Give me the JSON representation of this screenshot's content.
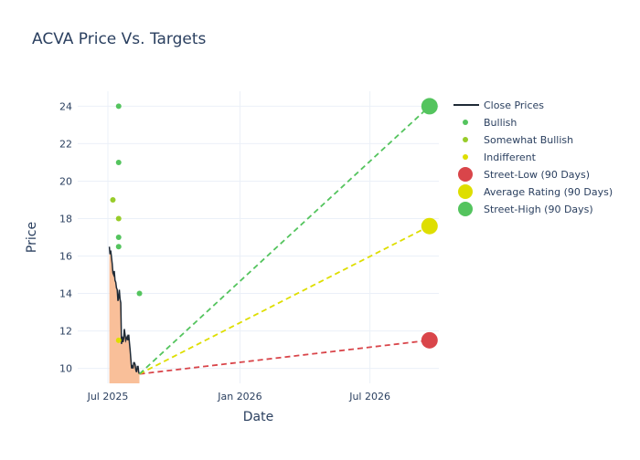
{
  "chart_data": {
    "type": "line",
    "title": "ACVA Price Vs. Targets",
    "xlabel": "Date",
    "ylabel": "Price",
    "x_range": [
      "2025-05-20",
      "2026-10-05"
    ],
    "ylim": [
      9.2,
      24.8
    ],
    "x_ticks": [
      {
        "date": "2025-07-01",
        "label": "Jul 2025"
      },
      {
        "date": "2026-01-01",
        "label": "Jan 2026"
      },
      {
        "date": "2026-07-01",
        "label": "Jul 2026"
      }
    ],
    "y_ticks": [
      10,
      12,
      14,
      16,
      18,
      20,
      22,
      24
    ],
    "grid": true,
    "legend_position": "right",
    "close_prices": {
      "name": "Close Prices",
      "color": "#1f2a36",
      "fill_color": "#f9bf99",
      "points": [
        [
          "2025-07-03",
          16.5
        ],
        [
          "2025-07-04",
          16.1
        ],
        [
          "2025-07-05",
          16.3
        ],
        [
          "2025-07-07",
          15.6
        ],
        [
          "2025-07-08",
          15.1
        ],
        [
          "2025-07-09",
          15.0
        ],
        [
          "2025-07-10",
          15.2
        ],
        [
          "2025-07-11",
          14.7
        ],
        [
          "2025-07-12",
          14.6
        ],
        [
          "2025-07-13",
          14.3
        ],
        [
          "2025-07-14",
          14.2
        ],
        [
          "2025-07-15",
          13.6
        ],
        [
          "2025-07-16",
          13.8
        ],
        [
          "2025-07-17",
          14.2
        ],
        [
          "2025-07-18",
          13.7
        ],
        [
          "2025-07-19",
          13.5
        ],
        [
          "2025-07-20",
          11.3
        ],
        [
          "2025-07-21",
          11.7
        ],
        [
          "2025-07-22",
          11.4
        ],
        [
          "2025-07-23",
          11.6
        ],
        [
          "2025-07-24",
          12.1
        ],
        [
          "2025-07-25",
          11.8
        ],
        [
          "2025-07-26",
          11.5
        ],
        [
          "2025-07-27",
          11.6
        ],
        [
          "2025-07-28",
          11.7
        ],
        [
          "2025-07-29",
          11.5
        ],
        [
          "2025-07-30",
          11.8
        ],
        [
          "2025-07-31",
          11.4
        ],
        [
          "2025-08-01",
          11.0
        ],
        [
          "2025-08-02",
          10.5
        ],
        [
          "2025-08-03",
          10.0
        ],
        [
          "2025-08-04",
          10.1
        ],
        [
          "2025-08-05",
          10.0
        ],
        [
          "2025-08-06",
          10.3
        ],
        [
          "2025-08-07",
          10.3
        ],
        [
          "2025-08-08",
          10.2
        ],
        [
          "2025-08-09",
          9.9
        ],
        [
          "2025-08-10",
          9.8
        ],
        [
          "2025-08-11",
          10.1
        ],
        [
          "2025-08-12",
          10.1
        ],
        [
          "2025-08-13",
          9.8
        ],
        [
          "2025-08-14",
          9.7
        ]
      ]
    },
    "ratings": [
      {
        "series": "Bullish",
        "date": "2025-07-16",
        "price": 24
      },
      {
        "series": "Bullish",
        "date": "2025-07-16",
        "price": 21
      },
      {
        "series": "Bullish",
        "date": "2025-07-16",
        "price": 17
      },
      {
        "series": "Bullish",
        "date": "2025-07-16",
        "price": 16.5
      },
      {
        "series": "Bullish",
        "date": "2025-08-14",
        "price": 14
      },
      {
        "series": "Somewhat Bullish",
        "date": "2025-07-08",
        "price": 19
      },
      {
        "series": "Somewhat Bullish",
        "date": "2025-07-16",
        "price": 18
      },
      {
        "series": "Indifferent",
        "date": "2025-07-16",
        "price": 11.5
      }
    ],
    "targets": [
      {
        "name": "Street-Low (90 Days)",
        "price": 11.5,
        "color": "#d9454a"
      },
      {
        "name": "Average Rating (90 Days)",
        "price": 17.6,
        "color": "#dede00"
      },
      {
        "name": "Street-High (90 Days)",
        "price": 24,
        "color": "#54c45e"
      }
    ],
    "target_date": "2026-09-22",
    "target_start": {
      "date": "2025-08-14",
      "price": 9.7
    },
    "series_colors": {
      "Bullish": "#54c45e",
      "Somewhat Bullish": "#98cc2a",
      "Indifferent": "#dede00"
    },
    "legend": [
      {
        "label": "Close Prices",
        "kind": "line",
        "color": "#1f2a36"
      },
      {
        "label": "Bullish",
        "kind": "dot",
        "color": "#54c45e"
      },
      {
        "label": "Somewhat Bullish",
        "kind": "dot",
        "color": "#98cc2a"
      },
      {
        "label": "Indifferent",
        "kind": "dot",
        "color": "#dede00"
      },
      {
        "label": "Street-Low (90 Days)",
        "kind": "big",
        "color": "#d9454a"
      },
      {
        "label": "Average Rating (90 Days)",
        "kind": "big",
        "color": "#dede00"
      },
      {
        "label": "Street-High (90 Days)",
        "kind": "big",
        "color": "#54c45e"
      }
    ]
  }
}
